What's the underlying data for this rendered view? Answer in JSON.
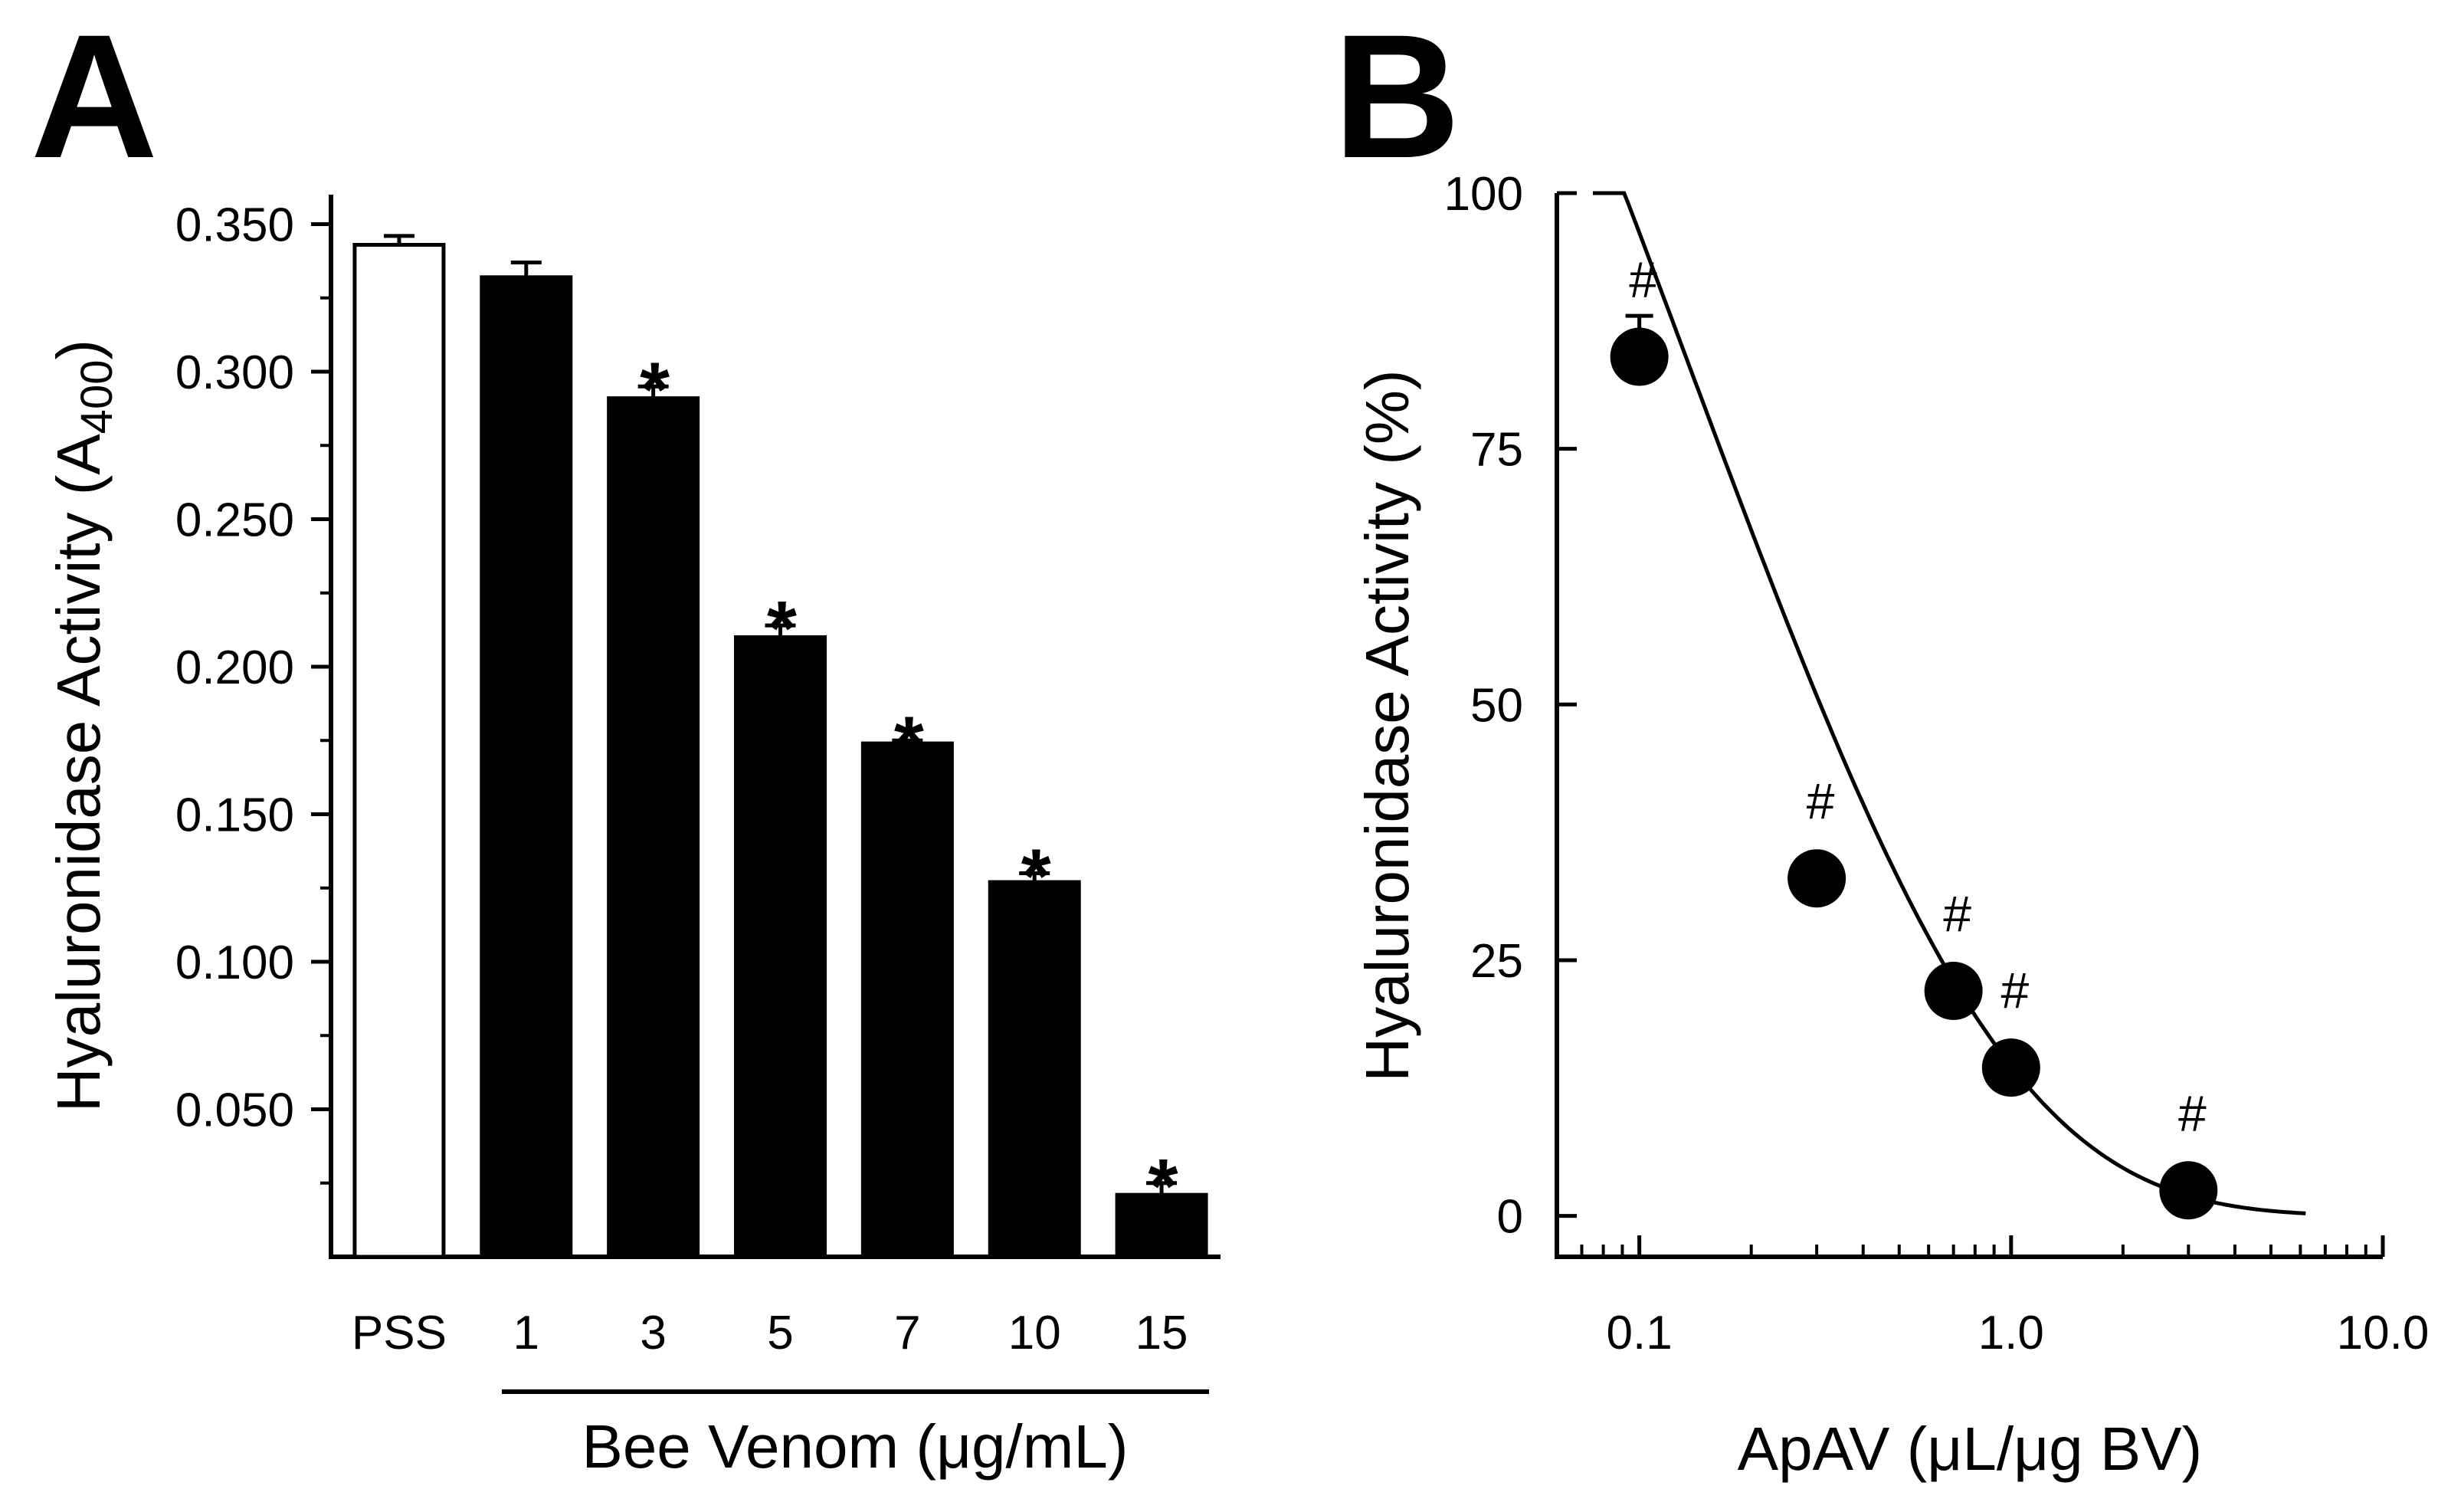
{
  "panel_a": {
    "label": "A",
    "chart_data": {
      "type": "bar",
      "ylabel": "Hyaluronidase Activity (A",
      "ylabel_subscript": "400",
      "ylabel_close": ")",
      "xlabel": "Bee Venom (μg/mL)",
      "categories": [
        "PSS",
        "1",
        "3",
        "5",
        "7",
        "10",
        "15"
      ],
      "values": [
        0.343,
        0.332,
        0.291,
        0.21,
        0.174,
        0.127,
        0.021
      ],
      "errors": [
        0.003,
        0.005,
        0.004,
        0.004,
        0.001,
        0.003,
        0.004
      ],
      "fills": [
        "#ffffff",
        "#000000",
        "#000000",
        "#000000",
        "#000000",
        "#000000",
        "#000000"
      ],
      "significance": [
        "",
        "",
        "*",
        "*",
        "*",
        "*",
        "*"
      ],
      "ylim": [
        0.0,
        0.36
      ],
      "yticks": [
        0.05,
        0.1,
        0.15,
        0.2,
        0.25,
        0.3,
        0.35
      ],
      "ytick_labels": [
        "0.050",
        "0.100",
        "0.150",
        "0.200",
        "0.250",
        "0.300",
        "0.350"
      ],
      "ytick_minor": [
        0.025,
        0.075,
        0.125,
        0.175,
        0.225,
        0.275,
        0.325
      ]
    }
  },
  "panel_b": {
    "label": "B",
    "chart_data": {
      "type": "scatter",
      "xscale": "log",
      "xlabel": "ApAV (μL/μg BV)",
      "ylabel": "Hyaluronidase Activity (%)",
      "x": [
        0.1,
        0.3,
        0.7,
        1.0,
        3.0
      ],
      "y": [
        84,
        33,
        22,
        14.5,
        2.5
      ],
      "errors": [
        4,
        0,
        0,
        0,
        0
      ],
      "significance": [
        "#",
        "#",
        "#",
        "#",
        "#"
      ],
      "xlim": [
        0.06,
        10.0
      ],
      "ylim": [
        -4,
        100
      ],
      "xticks": [
        0.1,
        1.0,
        10.0
      ],
      "xtick_labels": [
        "0.1",
        "1.0",
        "10.0"
      ],
      "yticks": [
        0,
        25,
        50,
        75,
        100
      ],
      "ytick_labels": [
        "0",
        "25",
        "50",
        "75",
        "100"
      ],
      "fit": {
        "type": "exponential",
        "x_start": 0.075,
        "x_end": 6.2,
        "y0": 108,
        "k": 2.75
      }
    }
  },
  "colors": {
    "ink": "#000000",
    "background": "#ffffff"
  }
}
